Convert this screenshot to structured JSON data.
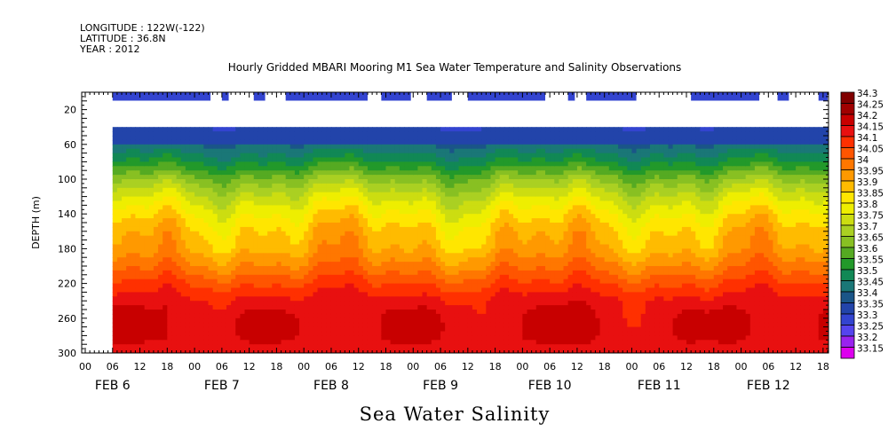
{
  "header": {
    "longitude": "LONGITUDE : 122W(-122)",
    "latitude": "LATITUDE : 36.8N",
    "year": "YEAR : 2012",
    "title": "Hourly Gridded MBARI Mooring M1 Sea Water Temperature and Salinity Observations"
  },
  "chart_data": {
    "type": "heatmap",
    "title": "Hourly Gridded MBARI Mooring M1 Sea Water Temperature and Salinity Observations",
    "subtitle": "Sea Water Salinity",
    "ylabel": "DEPTH (m)",
    "xlabel": "",
    "y_axis": {
      "ylim": [
        0,
        300
      ],
      "inverted": true,
      "ticks": [
        20,
        60,
        100,
        140,
        180,
        220,
        260,
        300
      ]
    },
    "x_axis": {
      "hour_ticks": [
        "00",
        "06",
        "12",
        "18",
        "00",
        "06",
        "12",
        "18",
        "00",
        "06",
        "12",
        "18",
        "00",
        "06",
        "12",
        "18",
        "00",
        "06",
        "12",
        "18",
        "00",
        "06",
        "12",
        "18",
        "00",
        "06",
        "12",
        "18"
      ],
      "day_labels": [
        "FEB  6",
        "FEB  7",
        "FEB  8",
        "FEB  9",
        "FEB 10",
        "FEB 11",
        "FEB 12"
      ],
      "range_hours": [
        0,
        163
      ]
    },
    "colorbar": {
      "levels": [
        "34.3",
        "34.25",
        "34.2",
        "34.15",
        "34.1",
        "34.05",
        "34",
        "33.95",
        "33.9",
        "33.85",
        "33.8",
        "33.75",
        "33.7",
        "33.65",
        "33.6",
        "33.55",
        "33.5",
        "33.45",
        "33.4",
        "33.35",
        "33.3",
        "33.25",
        "33.2",
        "33.15"
      ],
      "colors": [
        "#800000",
        "#a00000",
        "#c80000",
        "#e81010",
        "#ff3000",
        "#ff5500",
        "#ff7700",
        "#ff9900",
        "#ffbb00",
        "#ffe600",
        "#eeee00",
        "#ccdd11",
        "#aad022",
        "#88c022",
        "#55aa22",
        "#22992a",
        "#118855",
        "#1a7777",
        "#1a5588",
        "#2244aa",
        "#3344d0",
        "#5544ee",
        "#9922ee",
        "#dd00ee"
      ]
    },
    "depth_levels": [
      10,
      40,
      60,
      80,
      100,
      120,
      140,
      160,
      180,
      200,
      220,
      240,
      260,
      280,
      300
    ],
    "near_surface_salinity_10m": 33.33,
    "profile_salinity_by_depth": [
      33.33,
      33.35,
      33.45,
      33.55,
      33.68,
      33.78,
      33.86,
      33.92,
      33.95,
      34.02,
      34.1,
      34.17,
      34.2,
      34.2,
      34.18
    ],
    "series": [
      {
        "name": "Sea Water Salinity",
        "data_start_hour": 6,
        "data_end_hour": 163
      }
    ]
  },
  "colors": {
    "axis": "#000000",
    "background": "#ffffff"
  }
}
